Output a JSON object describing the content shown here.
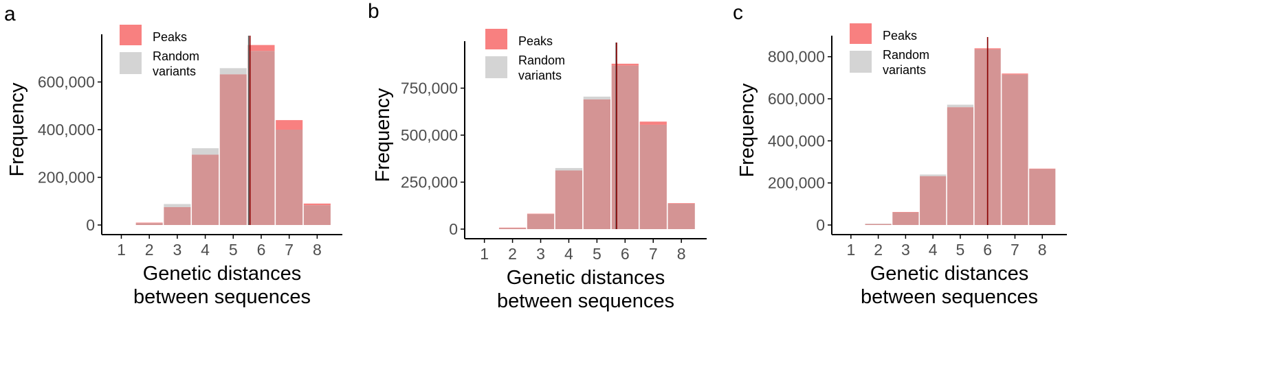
{
  "colors": {
    "peaks": "#f88080",
    "random": "#d4d4d4",
    "overlap": "#d49494",
    "peaks_mean_line": "#8b0000",
    "random_mean_line": "#555555",
    "axis": "#000000",
    "tick_text": "#4d4d4d"
  },
  "chart_data": [
    {
      "type": "bar",
      "panel": "a",
      "xlabel": "Genetic distances",
      "xlabel2": "between sequences",
      "ylabel": "Frequency",
      "categories": [
        1,
        2,
        3,
        4,
        5,
        6,
        7,
        8
      ],
      "series": [
        {
          "name": "Peaks",
          "values": [
            0,
            10000,
            75000,
            295000,
            632000,
            755000,
            440000,
            90000
          ]
        },
        {
          "name": "Random variants",
          "values": [
            0,
            8000,
            88000,
            322000,
            658000,
            730000,
            400000,
            83000
          ]
        }
      ],
      "ylim": [
        0,
        800000
      ],
      "yticks": [
        0,
        200000,
        400000,
        600000
      ],
      "ytick_labels": [
        "0",
        "200,000",
        "400,000",
        "600,000"
      ],
      "mean_lines": {
        "Peaks": 5.6,
        "Random variants": 5.55
      },
      "legend": [
        "Peaks",
        "Random",
        "variants"
      ]
    },
    {
      "type": "bar",
      "panel": "b",
      "xlabel": "Genetic distances",
      "xlabel2": "between sequences",
      "ylabel": "Frequency",
      "categories": [
        1,
        2,
        3,
        4,
        5,
        6,
        7,
        8
      ],
      "series": [
        {
          "name": "Peaks",
          "values": [
            0,
            8000,
            82000,
            312000,
            690000,
            880000,
            572000,
            138000
          ]
        },
        {
          "name": "Random variants",
          "values": [
            0,
            6000,
            80000,
            325000,
            705000,
            870000,
            555000,
            135000
          ]
        }
      ],
      "ylim": [
        0,
        1000000
      ],
      "yticks": [
        0,
        250000,
        500000,
        750000
      ],
      "ytick_labels": [
        "0",
        "250,000",
        "500,000",
        "750,000"
      ],
      "mean_lines": {
        "Peaks": 5.7,
        "Random variants": 5.68
      },
      "legend": [
        "Peaks",
        "Random",
        "variants"
      ]
    },
    {
      "type": "bar",
      "panel": "c",
      "xlabel": "Genetic distances",
      "xlabel2": "between sequences",
      "ylabel": "Frequency",
      "categories": [
        1,
        2,
        3,
        4,
        5,
        6,
        7,
        8
      ],
      "series": [
        {
          "name": "Peaks",
          "values": [
            0,
            5000,
            62000,
            232000,
            560000,
            840000,
            720000,
            268000
          ]
        },
        {
          "name": "Random variants",
          "values": [
            0,
            6000,
            60000,
            240000,
            572000,
            835000,
            715000,
            266000
          ]
        }
      ],
      "ylim": [
        0,
        900000
      ],
      "yticks": [
        0,
        200000,
        400000,
        600000,
        800000
      ],
      "ytick_labels": [
        "0",
        "200,000",
        "400,000",
        "600,000",
        "800,000"
      ],
      "mean_lines": {
        "Peaks": 6.0,
        "Random variants": 6.0
      },
      "legend": [
        "Peaks",
        "Random",
        "variants"
      ]
    }
  ]
}
